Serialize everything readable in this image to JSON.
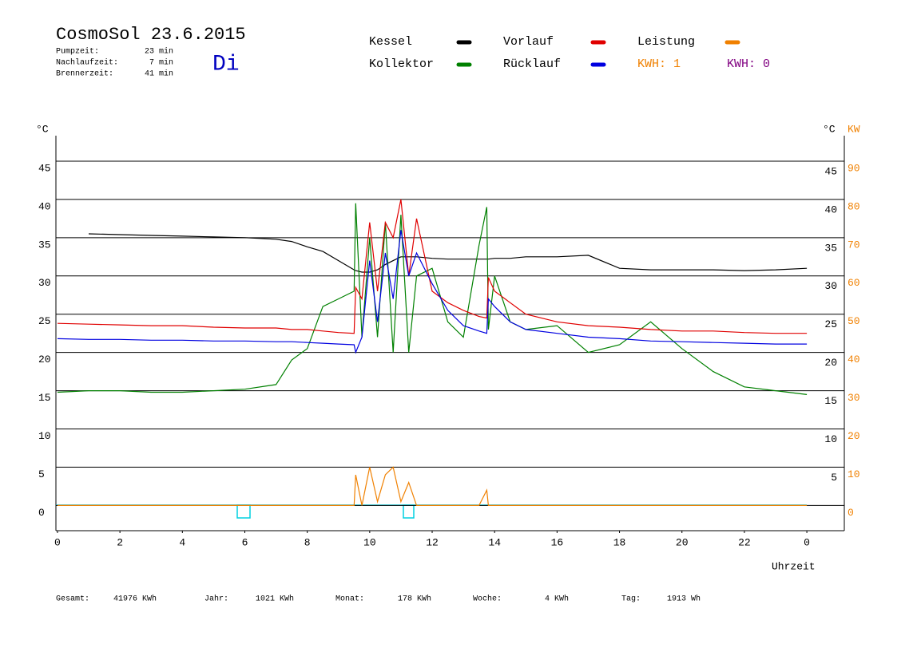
{
  "header": {
    "title": "CosmoSol 23.6.2015",
    "weekday": "Di",
    "info": [
      {
        "label": "Pumpzeit:",
        "value": "23 min"
      },
      {
        "label": "Nachlaufzeit:",
        "value": "7 min"
      },
      {
        "label": "Brennerzeit:",
        "value": "41 min"
      }
    ],
    "kwh": [
      "KWH: 1",
      "KWH: 0"
    ]
  },
  "footer": [
    {
      "label": "Gesamt:",
      "value": "41976 KWh"
    },
    {
      "label": "Jahr:",
      "value": "1021 KWh"
    },
    {
      "label": "Monat:",
      "value": "178 KWh"
    },
    {
      "label": "Woche:",
      "value": "4 KWh"
    },
    {
      "label": "Tag:",
      "value": "1913 Wh"
    }
  ],
  "chart_data": {
    "type": "line",
    "ylabel": "°C",
    "y2label": "KW",
    "xlabel": "Uhrzeit",
    "xlim": [
      -0.05,
      25.2
    ],
    "xticks": [
      0,
      2,
      4,
      6,
      8,
      10,
      12,
      14,
      16,
      18,
      20,
      22,
      {
        "value": 24,
        "label": "0"
      }
    ],
    "ylim": [
      -3.3,
      49.9
    ],
    "yticks": [
      0,
      5,
      10,
      15,
      20,
      25,
      30,
      35,
      40,
      45
    ],
    "yticks_right": [
      5,
      10,
      15,
      20,
      25,
      30,
      35,
      40,
      45
    ],
    "y2lim": [
      -6.6,
      99.8
    ],
    "y2ticks": [
      0,
      10,
      20,
      30,
      40,
      50,
      60,
      70,
      80,
      90
    ],
    "grid": true,
    "x": [
      0,
      1,
      2,
      3,
      4,
      5,
      6,
      7,
      7.5,
      8,
      8.5,
      9,
      9.5,
      9.55,
      9.75,
      10,
      10.25,
      10.5,
      10.75,
      11,
      11.25,
      11.5,
      12,
      12.5,
      13,
      13.5,
      13.75,
      13.8,
      14,
      14.5,
      15,
      16,
      17,
      18,
      19,
      20,
      21,
      22,
      23,
      24
    ],
    "series": [
      {
        "name": "Kessel",
        "color": "#000000",
        "values": [
          null,
          35.5,
          35.4,
          35.3,
          35.2,
          35.1,
          35.0,
          34.8,
          34.5,
          33.8,
          33.2,
          32,
          30.8,
          30.7,
          30.5,
          30.5,
          30.8,
          31.5,
          32,
          32.5,
          32.5,
          32.5,
          32.3,
          32.2,
          32.2,
          32.2,
          32.2,
          32.2,
          32.3,
          32.3,
          32.5,
          32.5,
          32.7,
          31.0,
          30.8,
          30.8,
          30.8,
          30.7,
          30.8,
          31.0
        ]
      },
      {
        "name": "Kollektor",
        "color": "#008000",
        "values": [
          14.8,
          15,
          15,
          14.8,
          14.8,
          15,
          15.2,
          15.8,
          19,
          20.5,
          26,
          27,
          28,
          39.5,
          22,
          35,
          22,
          37,
          20,
          38,
          20,
          30,
          31,
          24,
          22,
          34,
          39,
          23,
          30,
          24,
          23,
          23.5,
          20,
          21,
          24,
          20.5,
          17.5,
          15.5,
          15,
          14.5
        ]
      },
      {
        "name": "Vorlauf",
        "color": "#e00000",
        "values": [
          23.8,
          23.7,
          23.6,
          23.5,
          23.5,
          23.3,
          23.2,
          23.2,
          23.0,
          23.0,
          22.8,
          22.6,
          22.5,
          28.5,
          27,
          37,
          28,
          37,
          35,
          40,
          30,
          37.5,
          28,
          26.5,
          25.5,
          24.7,
          24.5,
          29.8,
          28,
          26.5,
          25,
          24,
          23.5,
          23.3,
          23,
          22.8,
          22.8,
          22.6,
          22.5,
          22.5
        ]
      },
      {
        "name": "Rücklauf",
        "color": "#0000e0",
        "values": [
          21.8,
          21.7,
          21.7,
          21.6,
          21.6,
          21.5,
          21.5,
          21.4,
          21.4,
          21.3,
          21.2,
          21.1,
          21,
          20,
          22,
          32,
          24,
          33,
          27,
          36,
          30,
          33,
          29,
          25.5,
          23.5,
          22.8,
          22.5,
          27,
          26,
          24,
          23,
          22.5,
          22,
          21.8,
          21.5,
          21.4,
          21.3,
          21.2,
          21.1,
          21.1
        ]
      },
      {
        "name": "Leistung",
        "color": "#f08000",
        "axis": "y2",
        "values": [
          0,
          0,
          0,
          0,
          0,
          0,
          0,
          0,
          0,
          0,
          0,
          0,
          0,
          8,
          0,
          10,
          1,
          8,
          10,
          1,
          6,
          0,
          0,
          0,
          0,
          0,
          4,
          0,
          0,
          0,
          0,
          0,
          0,
          0,
          0,
          0,
          0,
          0,
          0,
          0
        ]
      }
    ]
  }
}
